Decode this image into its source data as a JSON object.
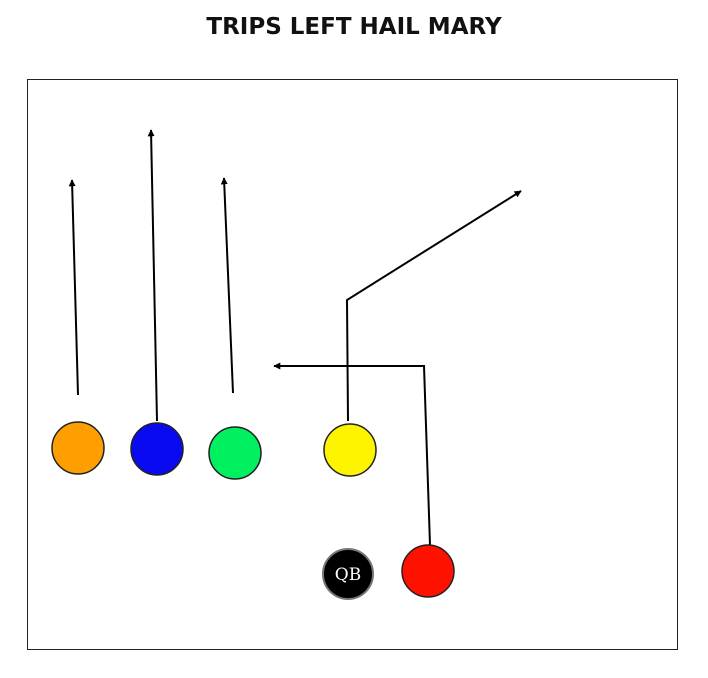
{
  "diagram": {
    "title": "TRIPS LEFT HAIL MARY"
  },
  "players": [
    {
      "id": "orange",
      "color": "#FF9E00",
      "label": ""
    },
    {
      "id": "blue",
      "color": "#0A0AF0",
      "label": ""
    },
    {
      "id": "green",
      "color": "#00F060",
      "label": ""
    },
    {
      "id": "yellow",
      "color": "#FFF400",
      "label": ""
    },
    {
      "id": "qb",
      "color": "#000000",
      "label": "QB"
    },
    {
      "id": "red",
      "color": "#FF1100",
      "label": ""
    }
  ],
  "routes": [
    {
      "player": "orange",
      "route": "go"
    },
    {
      "player": "blue",
      "route": "go"
    },
    {
      "player": "green",
      "route": "go"
    },
    {
      "player": "yellow",
      "route": "corner"
    },
    {
      "player": "red",
      "route": "crossing"
    }
  ]
}
